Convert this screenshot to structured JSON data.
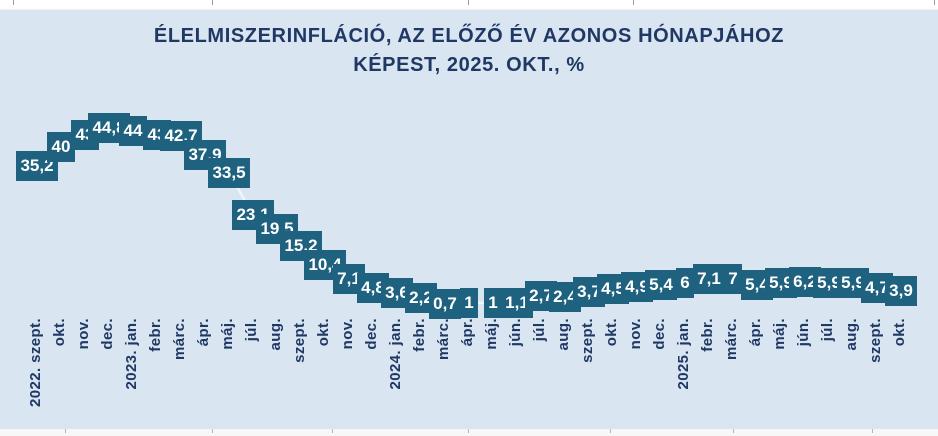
{
  "page": {
    "background_color": "#d9e5f1",
    "title_color": "#1f3864",
    "label_box_color": "#1e6280",
    "label_text_color": "#ffffff"
  },
  "chart_data": {
    "type": "line",
    "title": "ÉLELMISZERINFLÁCIÓ, AZ ELŐZŐ ÉV AZONOS HÓNAPJÁHOZ KÉPEST, 2025. OKT., %",
    "title_line1": "ÉLELMISZERINFLÁCIÓ, AZ ELŐZŐ ÉV AZONOS HÓNAPJÁHOZ",
    "title_line2": "KÉPEST, 2025. OKT., %",
    "unit": "%",
    "xlabel": "",
    "ylabel": "",
    "ylim": [
      0,
      46
    ],
    "grid": false,
    "legend": "none",
    "categories": [
      "2022. szept.",
      "okt.",
      "nov.",
      "dec.",
      "2023. jan.",
      "febr.",
      "márc.",
      "ápr.",
      "máj.",
      "júl.",
      "aug.",
      "szept.",
      "okt.",
      "nov.",
      "dec.",
      "2024. jan.",
      "febr.",
      "márc.",
      "ápr.",
      "máj.",
      "jún.",
      "júl.",
      "aug.",
      "szept.",
      "okt.",
      "nov.",
      "dec.",
      "2025. jan.",
      "febr.",
      "márc.",
      "ápr.",
      "máj.",
      "jún.",
      "júl.",
      "aug.",
      "szept.",
      "okt."
    ],
    "values": [
      35.2,
      40,
      43,
      44.8,
      44,
      43,
      42.7,
      37.9,
      33.5,
      23.1,
      19.5,
      15.2,
      10.4,
      7.1,
      4.8,
      3.6,
      2.2,
      0.7,
      1,
      1,
      1.1,
      2.7,
      2.4,
      3.7,
      4.5,
      4.9,
      5.4,
      6,
      7.1,
      7,
      5.4,
      5.9,
      6.2,
      5.9,
      5.9,
      4.7,
      3.9
    ],
    "labels": [
      "35,2",
      "40",
      "43",
      "44,8",
      "44",
      "43",
      "42.7",
      "37.9",
      "33,5",
      "23,1",
      "19.5",
      "15,2",
      "10,4",
      "7,1",
      "4,8",
      "3,6",
      "2,2",
      "0,7",
      "1",
      "1",
      "1,1",
      "2,7",
      "2,4",
      "3,7",
      "4,5",
      "4,9",
      "5,4",
      "6",
      "7,1",
      "7",
      "5,4",
      "5,9",
      "6,2",
      "5,9",
      "5,9",
      "4,7",
      "3,9"
    ],
    "colors": {
      "line": "#eef5fb",
      "box": "#1e6280",
      "box_text": "#ffffff",
      "axis_text": "#1f3864"
    }
  }
}
